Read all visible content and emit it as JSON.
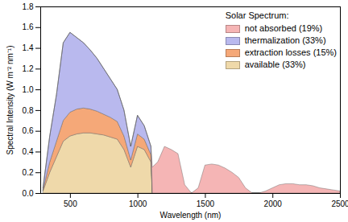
{
  "chart_data": {
    "type": "area",
    "stacked": true,
    "legend_title": "Solar Spectrum:",
    "x_label": "Wavelength (nm)",
    "y_label": "Spectral Intensity (W m⁻² nm⁻¹)",
    "x": [
      300,
      350,
      400,
      450,
      500,
      550,
      600,
      650,
      700,
      750,
      800,
      850,
      900,
      950,
      1000,
      1050,
      1100,
      1110,
      1150,
      1200,
      1250,
      1300,
      1350,
      1400,
      1450,
      1500,
      1550,
      1600,
      1650,
      1700,
      1750,
      1800,
      1850,
      1900,
      1950,
      2000,
      2050,
      2100,
      2150,
      2200,
      2250,
      2300,
      2350,
      2400,
      2450,
      2500
    ],
    "series": [
      {
        "name": "available (33%)",
        "color": "#efd9aa",
        "values": [
          0.02,
          0.2,
          0.35,
          0.5,
          0.55,
          0.57,
          0.58,
          0.58,
          0.57,
          0.56,
          0.54,
          0.52,
          0.42,
          0.25,
          0.45,
          0.42,
          0.3,
          0,
          0,
          0,
          0,
          0,
          0,
          0,
          0,
          0,
          0,
          0,
          0,
          0,
          0,
          0,
          0,
          0,
          0,
          0,
          0,
          0,
          0,
          0,
          0,
          0,
          0,
          0,
          0,
          0
        ]
      },
      {
        "name": "extraction losses (15%)",
        "color": "#f5a878",
        "values": [
          0.01,
          0.1,
          0.15,
          0.2,
          0.23,
          0.24,
          0.24,
          0.23,
          0.22,
          0.2,
          0.19,
          0.17,
          0.13,
          0.07,
          0.12,
          0.1,
          0.07,
          0,
          0,
          0,
          0,
          0,
          0,
          0,
          0,
          0,
          0,
          0,
          0,
          0,
          0,
          0,
          0,
          0,
          0,
          0,
          0,
          0,
          0,
          0,
          0,
          0,
          0,
          0,
          0,
          0
        ]
      },
      {
        "name": "thermalization (33%)",
        "color": "#b9b9ee",
        "values": [
          0.02,
          0.25,
          0.45,
          0.75,
          0.77,
          0.69,
          0.63,
          0.57,
          0.51,
          0.44,
          0.37,
          0.31,
          0.25,
          0.13,
          0.18,
          0.13,
          0.08,
          0,
          0,
          0,
          0,
          0,
          0,
          0,
          0,
          0,
          0,
          0,
          0,
          0,
          0,
          0,
          0,
          0,
          0,
          0,
          0,
          0,
          0,
          0,
          0,
          0,
          0,
          0,
          0,
          0
        ]
      },
      {
        "name": "not absorbed (19%)",
        "color": "#f5b5b5",
        "values": [
          0,
          0,
          0,
          0,
          0,
          0,
          0,
          0,
          0,
          0,
          0,
          0,
          0,
          0,
          0,
          0,
          0,
          0.25,
          0.3,
          0.45,
          0.42,
          0.38,
          0.08,
          0,
          0.05,
          0.27,
          0.28,
          0.27,
          0.24,
          0.2,
          0.15,
          0.05,
          0,
          0,
          0.02,
          0.05,
          0.08,
          0.09,
          0.09,
          0.08,
          0.08,
          0.07,
          0.05,
          0.04,
          0.03,
          0.02
        ]
      }
    ],
    "xlim": [
      280,
      2500
    ],
    "xticks": [
      500,
      1000,
      1500,
      2000,
      2500
    ],
    "ylim": [
      0,
      1.8
    ],
    "yticks": [
      {
        "value": 0,
        "label": "0.0"
      },
      {
        "value": 0.2,
        "label": "0.2"
      },
      {
        "value": 0.4,
        "label": "0.4"
      },
      {
        "value": 0.6,
        "label": "0.6"
      },
      {
        "value": 0.8,
        "label": "0.8"
      },
      {
        "value": 1,
        "label": "1.0"
      },
      {
        "value": 1.2,
        "label": "1.2"
      },
      {
        "value": 1.4,
        "label": "1.4"
      },
      {
        "value": 1.6,
        "label": "1.6"
      },
      {
        "value": 1.8,
        "label": "1.8"
      }
    ],
    "grid": false,
    "legend": "top-right"
  }
}
